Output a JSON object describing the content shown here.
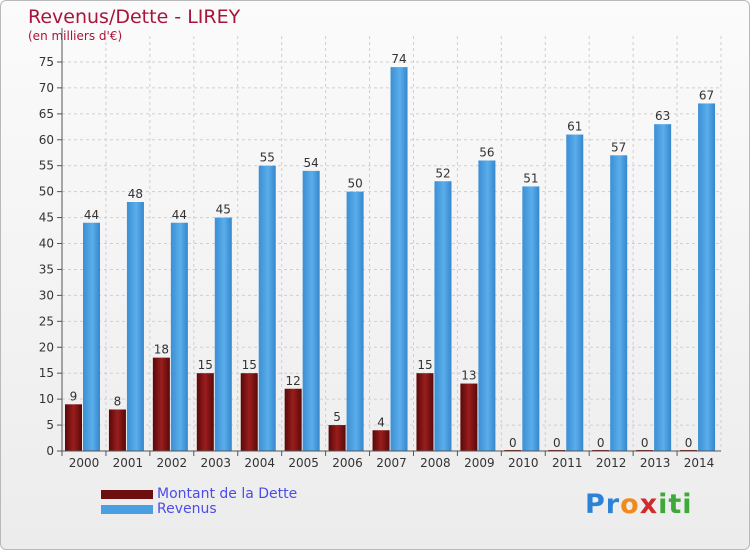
{
  "chart_data": {
    "type": "bar",
    "title": "Revenus/Dette - LIREY",
    "subtitle": "(en milliers d'€)",
    "categories": [
      "2000",
      "2001",
      "2002",
      "2003",
      "2004",
      "2005",
      "2006",
      "2007",
      "2008",
      "2009",
      "2010",
      "2011",
      "2012",
      "2013",
      "2014"
    ],
    "series": [
      {
        "name": "Montant de la Dette",
        "color": "#7d1212",
        "values": [
          9,
          8,
          18,
          15,
          15,
          12,
          5,
          4,
          15,
          13,
          0,
          0,
          0,
          0,
          0
        ]
      },
      {
        "name": "Revenus",
        "color": "#4a9fe0",
        "values": [
          44,
          48,
          44,
          45,
          55,
          54,
          50,
          74,
          52,
          56,
          51,
          61,
          57,
          63,
          67
        ]
      }
    ],
    "ylim": [
      0,
      80
    ],
    "yticks": [
      0,
      5,
      10,
      15,
      20,
      25,
      30,
      35,
      40,
      45,
      50,
      55,
      60,
      65,
      70,
      75
    ],
    "grid": true,
    "legend": "bottom-left"
  },
  "branding": {
    "logo_text": "Proxiti"
  }
}
